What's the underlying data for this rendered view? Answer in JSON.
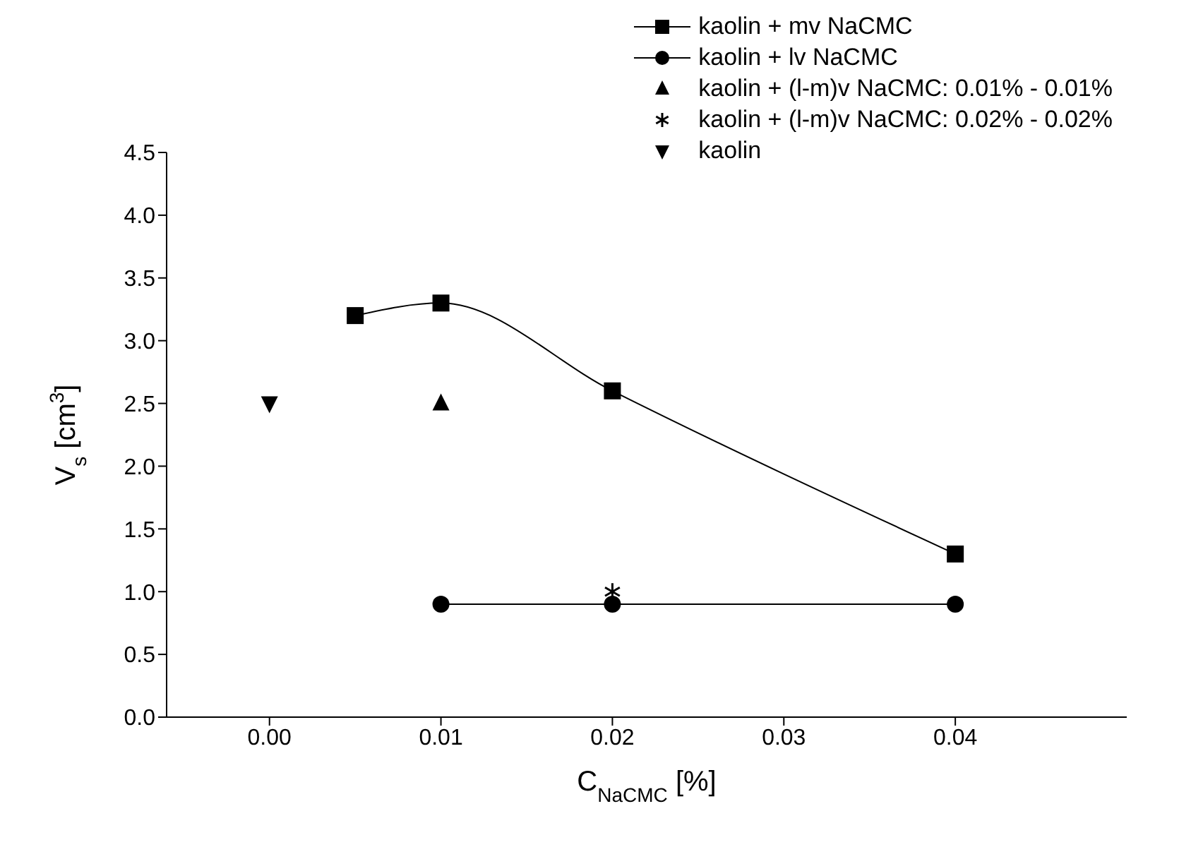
{
  "chart_data": {
    "type": "line",
    "xlabel": "C$_{NaCMC}$ [%]",
    "ylabel": "V$_{s}$ [cm$^{3}$]",
    "xlim": [
      -0.006,
      0.05
    ],
    "xticks": [
      {
        "value": 0,
        "label": "0.00"
      },
      {
        "value": 0.01,
        "label": "0.01"
      },
      {
        "value": 0.02,
        "label": "0.02"
      },
      {
        "value": 0.03,
        "label": "0.03"
      },
      {
        "value": 0.04,
        "label": "0.04"
      }
    ],
    "ylim": [
      0,
      4.5
    ],
    "yticks": [
      {
        "value": 0,
        "label": "0.0"
      },
      {
        "value": 0.5,
        "label": "0.5"
      },
      {
        "value": 1,
        "label": "1.0"
      },
      {
        "value": 1.5,
        "label": "1.5"
      },
      {
        "value": 2,
        "label": "2.0"
      },
      {
        "value": 2.5,
        "label": "2.5"
      },
      {
        "value": 3,
        "label": "3.0"
      },
      {
        "value": 3.5,
        "label": "3.5"
      },
      {
        "value": 4,
        "label": "4.0"
      },
      {
        "value": 4.5,
        "label": "4.5"
      }
    ],
    "legend": "top right",
    "grid": false,
    "series": [
      {
        "name": "kaolin + mv NaCMC",
        "type": "line",
        "marker": "square",
        "color": "#000000",
        "x": [
          0.005,
          0.01,
          0.02,
          0.04
        ],
        "values": [
          3.2,
          3.3,
          2.6,
          1.3
        ]
      },
      {
        "name": "kaolin + lv NaCMC",
        "type": "line",
        "marker": "circle",
        "color": "#000000",
        "x": [
          0.01,
          0.02,
          0.04
        ],
        "values": [
          0.9,
          0.9,
          0.9
        ]
      },
      {
        "name": "kaolin + (l-m)v NaCMC: 0.01% - 0.01%",
        "type": "scatter",
        "marker": "triangle",
        "color": "#000000",
        "x": [
          0.01
        ],
        "values": [
          2.5
        ]
      },
      {
        "name": "kaolin + (l-m)v NaCMC: 0.02% - 0.02%",
        "type": "scatter",
        "marker": "cross",
        "color": "#000000",
        "x": [
          0.02
        ],
        "values": [
          1.0
        ]
      },
      {
        "name": "kaolin",
        "type": "scatter",
        "marker": "triangle-down",
        "color": "#000000",
        "x": [
          0
        ],
        "values": [
          2.5
        ]
      }
    ]
  }
}
